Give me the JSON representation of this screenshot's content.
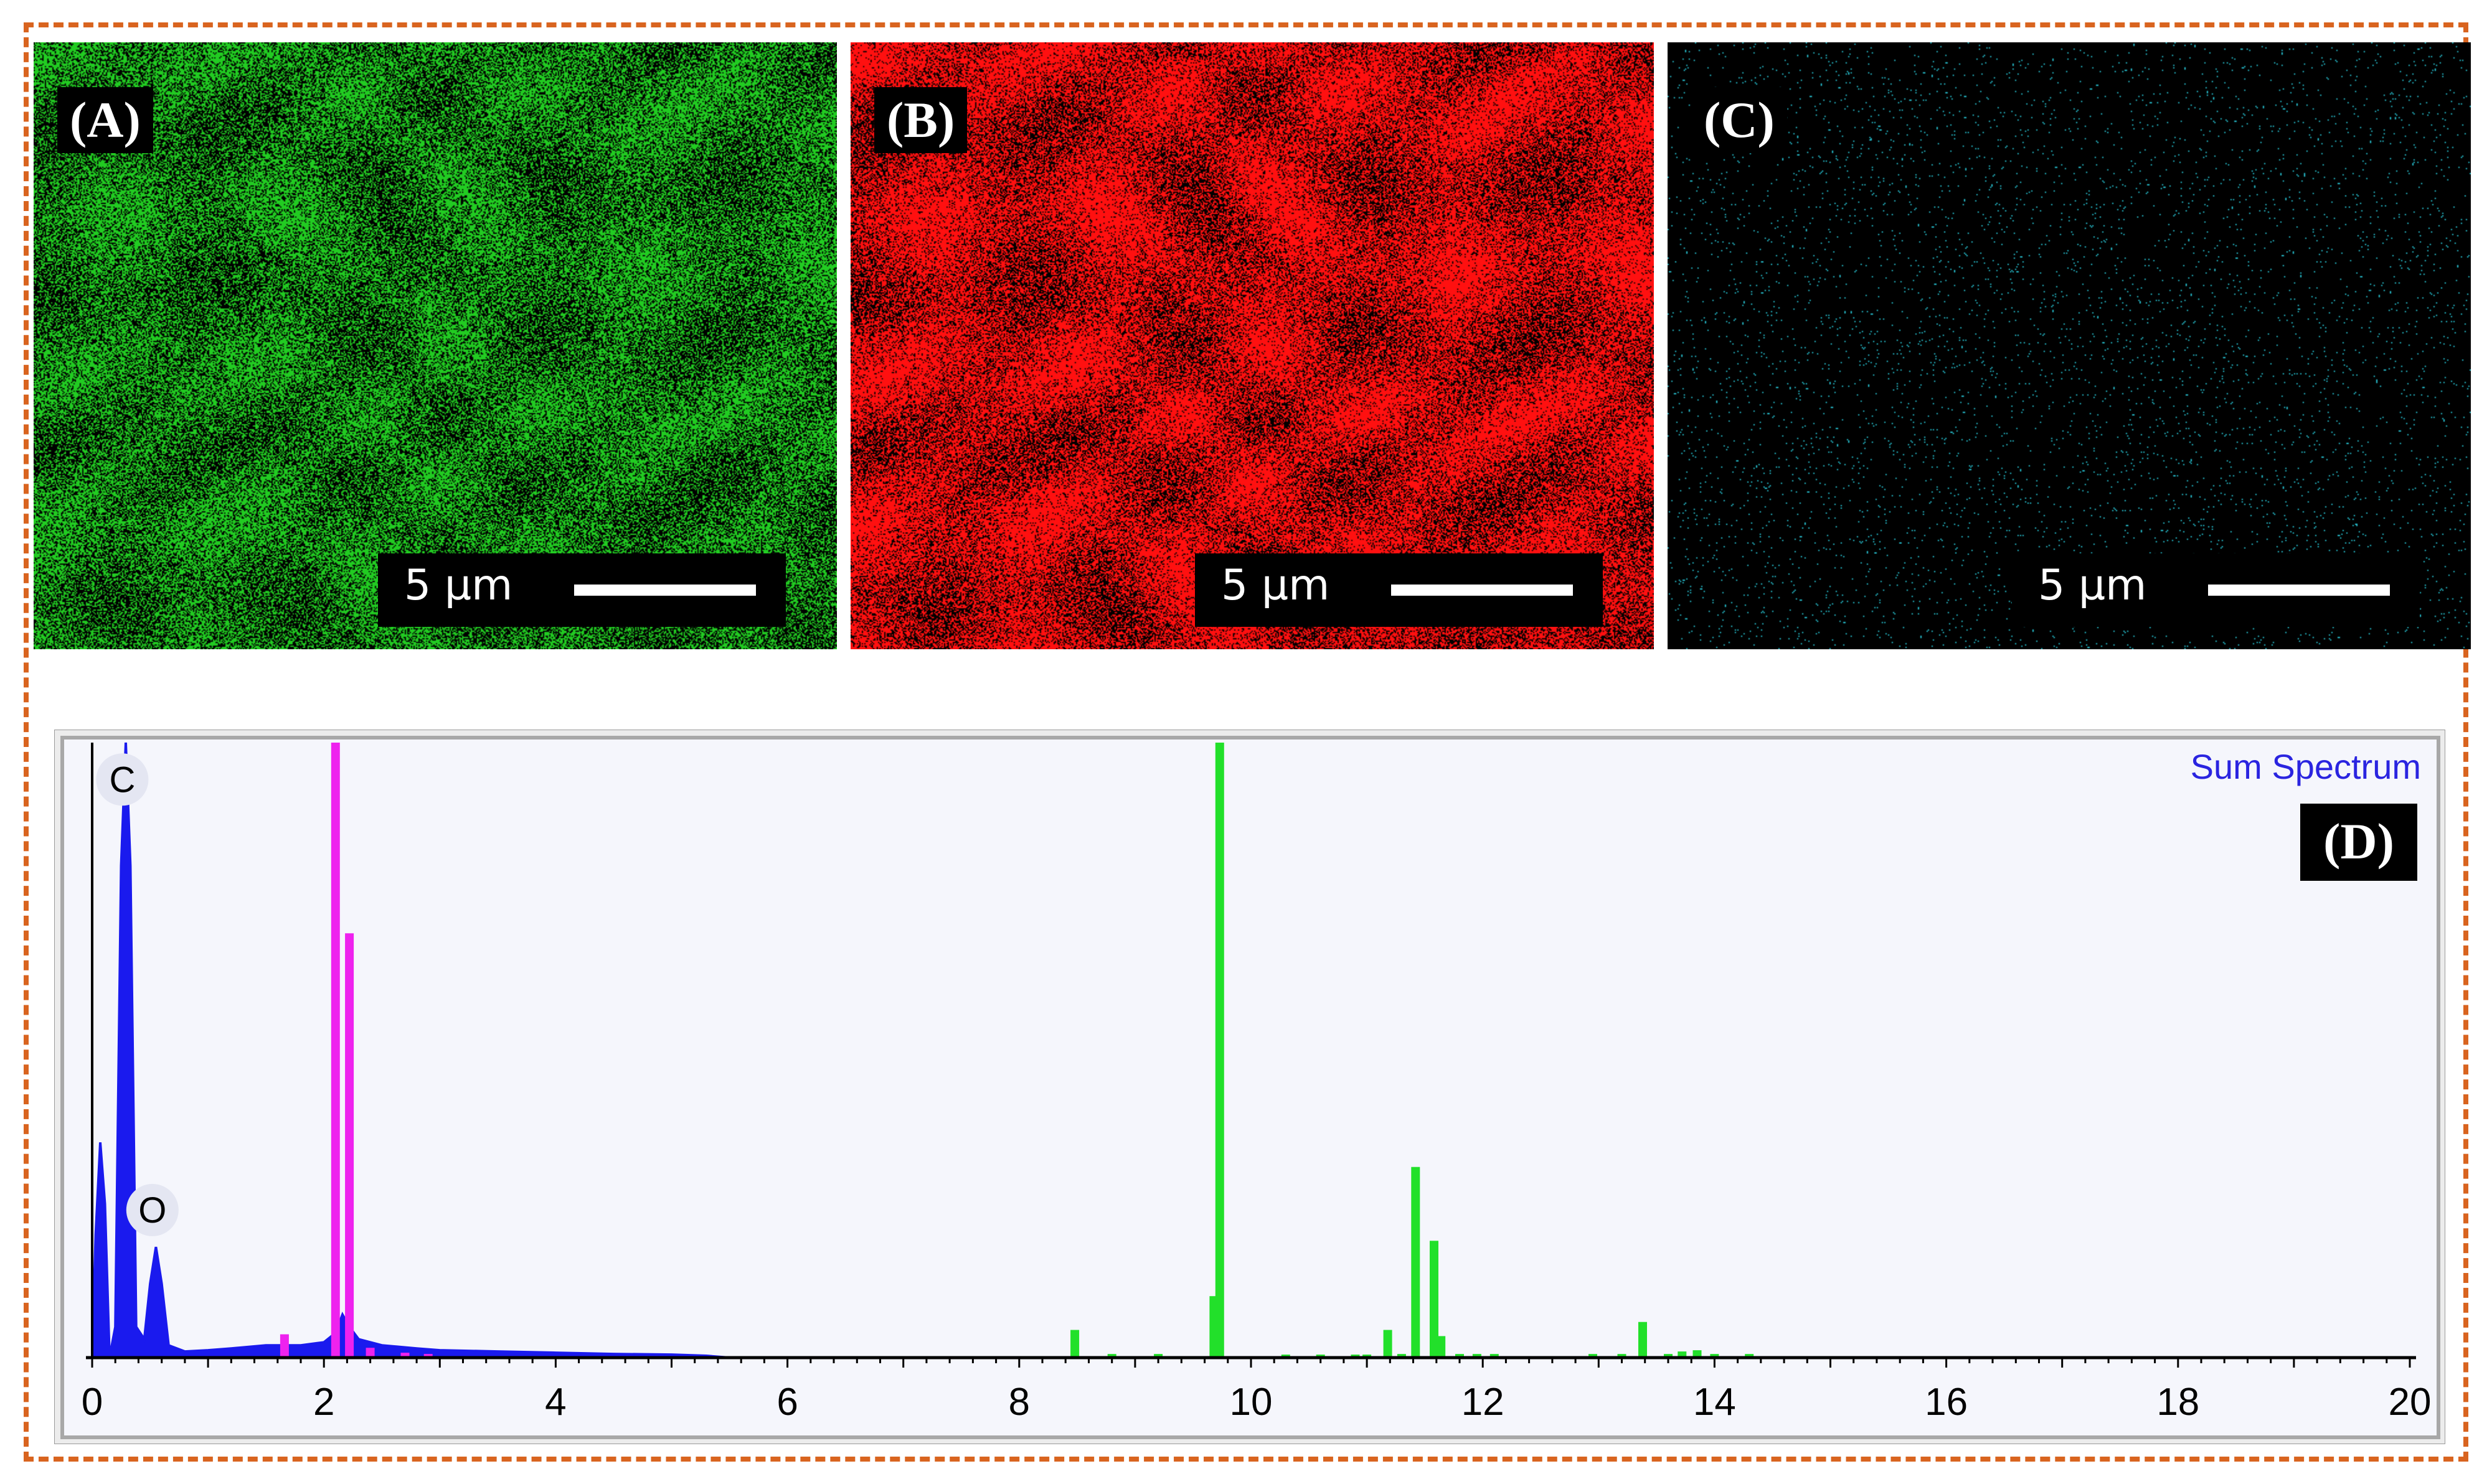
{
  "panels": [
    {
      "label": "(A)",
      "scale_text": "5 µm",
      "color": "#22cc22",
      "density": 0.62
    },
    {
      "label": "(B)",
      "scale_text": "5 µm",
      "color": "#ff1010",
      "density": 0.78
    },
    {
      "label": "(C)",
      "scale_text": "5 µm",
      "color": "#28c8d8",
      "density": 0.018
    }
  ],
  "frame_color": "#d9641f",
  "chart_data": {
    "type": "bar",
    "panel_label": "(D)",
    "legend": "Sum Spectrum",
    "legend_color": "#2a24e0",
    "xlim": [
      0,
      20
    ],
    "ylim": [
      0,
      100
    ],
    "x_ticks": [
      "0",
      "2",
      "4",
      "6",
      "8",
      "10",
      "12",
      "14",
      "16",
      "18",
      "20"
    ],
    "peak_labels": [
      {
        "text": "C",
        "x": 0.26,
        "y": 94
      },
      {
        "text": "O",
        "x": 0.52,
        "y": 24
      }
    ],
    "series": [
      {
        "color": "#1a1aee",
        "filled": true,
        "points": [
          [
            0.0,
            0
          ],
          [
            0.03,
            20
          ],
          [
            0.07,
            35
          ],
          [
            0.11,
            25
          ],
          [
            0.15,
            0
          ],
          [
            0.2,
            5
          ],
          [
            0.25,
            80
          ],
          [
            0.29,
            100
          ],
          [
            0.33,
            80
          ],
          [
            0.38,
            5
          ],
          [
            0.45,
            3
          ],
          [
            0.5,
            12
          ],
          [
            0.55,
            18
          ],
          [
            0.6,
            12
          ],
          [
            0.66,
            2
          ],
          [
            0.8,
            1
          ],
          [
            1.0,
            1.2
          ],
          [
            1.2,
            1.5
          ],
          [
            1.5,
            2
          ],
          [
            1.8,
            2
          ],
          [
            2.0,
            2.5
          ],
          [
            2.1,
            4
          ],
          [
            2.16,
            7
          ],
          [
            2.22,
            5
          ],
          [
            2.3,
            3
          ],
          [
            2.5,
            2
          ],
          [
            2.8,
            1.5
          ],
          [
            3.0,
            1.2
          ],
          [
            3.5,
            1
          ],
          [
            4.0,
            0.8
          ],
          [
            4.5,
            0.6
          ],
          [
            5.0,
            0.5
          ],
          [
            5.3,
            0.3
          ],
          [
            5.5,
            0
          ]
        ]
      },
      {
        "color": "#ee22ee",
        "filled": false,
        "bars": [
          [
            1.66,
            3.8
          ],
          [
            2.1,
            100
          ],
          [
            2.22,
            69
          ],
          [
            2.4,
            1.6
          ],
          [
            2.7,
            0.8
          ],
          [
            2.9,
            0.6
          ]
        ]
      },
      {
        "color": "#22e02a",
        "filled": false,
        "bars": [
          [
            8.48,
            4.5
          ],
          [
            8.8,
            0.6
          ],
          [
            9.2,
            0.6
          ],
          [
            9.68,
            10
          ],
          [
            9.73,
            100
          ],
          [
            10.3,
            0.5
          ],
          [
            10.6,
            0.5
          ],
          [
            10.9,
            0.5
          ],
          [
            11.0,
            0.5
          ],
          [
            11.18,
            4.5
          ],
          [
            11.3,
            0.6
          ],
          [
            11.42,
            31
          ],
          [
            11.58,
            19
          ],
          [
            11.64,
            3.5
          ],
          [
            11.8,
            0.6
          ],
          [
            11.95,
            0.6
          ],
          [
            12.1,
            0.6
          ],
          [
            12.95,
            0.6
          ],
          [
            13.2,
            0.6
          ],
          [
            13.38,
            5.8
          ],
          [
            13.6,
            0.6
          ],
          [
            13.72,
            1
          ],
          [
            13.85,
            1.2
          ],
          [
            14.0,
            0.6
          ],
          [
            14.3,
            0.6
          ]
        ]
      }
    ]
  }
}
